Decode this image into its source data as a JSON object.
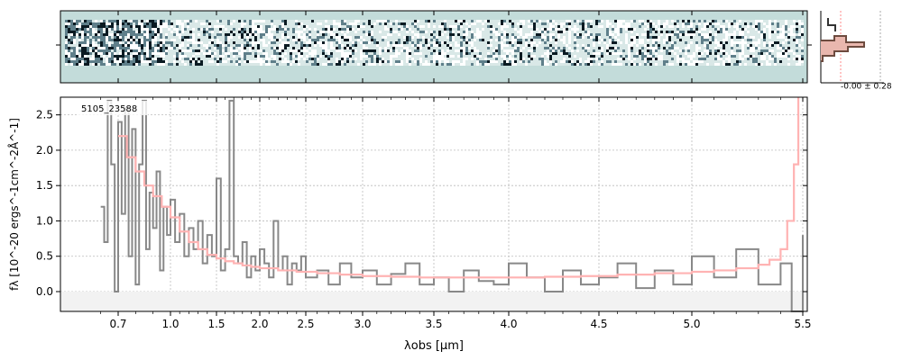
{
  "chart_data": {
    "type": "line",
    "title": "",
    "label": "5105_23588",
    "xlabel": "λobs [μm]",
    "ylabel": "fλ [10^-20 ergs^-1cm^-2Å^-1]",
    "x_ticks": [
      0.7,
      1.0,
      1.5,
      2.0,
      2.5,
      3.0,
      3.5,
      4.0,
      4.5,
      5.0,
      5.5
    ],
    "x_tick_labels": [
      "0.7",
      "1.0",
      "1.5",
      "2.0",
      "2.5",
      "3.0",
      "3.5",
      "4.0",
      "4.5",
      "5.0",
      "5.5"
    ],
    "y_ticks": [
      0.0,
      0.5,
      1.0,
      1.5,
      2.0,
      2.5
    ],
    "y_tick_labels": [
      "0.0",
      "0.5",
      "1.0",
      "1.5",
      "2.0",
      "2.5"
    ],
    "ylim": [
      -0.28,
      2.75
    ],
    "grid": true,
    "legend": "none",
    "inset_label": "-0.00 ± 0.28",
    "series": [
      {
        "color": "#888888",
        "x": [
          0.6,
          0.62,
          0.64,
          0.66,
          0.68,
          0.7,
          0.72,
          0.74,
          0.76,
          0.78,
          0.8,
          0.82,
          0.84,
          0.86,
          0.88,
          0.9,
          0.92,
          0.94,
          0.96,
          0.98,
          1.0,
          1.05,
          1.1,
          1.15,
          1.2,
          1.25,
          1.3,
          1.35,
          1.4,
          1.45,
          1.5,
          1.55,
          1.6,
          1.65,
          1.7,
          1.75,
          1.8,
          1.85,
          1.9,
          1.95,
          2.0,
          2.05,
          2.1,
          2.15,
          2.2,
          2.25,
          2.3,
          2.35,
          2.4,
          2.45,
          2.5,
          2.6,
          2.7,
          2.8,
          2.9,
          3.0,
          3.1,
          3.2,
          3.3,
          3.4,
          3.5,
          3.6,
          3.7,
          3.8,
          3.9,
          4.0,
          4.1,
          4.2,
          4.3,
          4.4,
          4.5,
          4.6,
          4.7,
          4.8,
          4.9,
          5.0,
          5.1,
          5.2,
          5.3,
          5.4,
          5.45,
          5.5
        ],
        "y": [
          1.2,
          0.7,
          2.7,
          1.8,
          0.0,
          2.4,
          1.1,
          2.6,
          0.5,
          2.3,
          0.1,
          1.8,
          2.7,
          0.6,
          1.4,
          0.9,
          1.7,
          0.3,
          1.2,
          0.8,
          1.3,
          0.7,
          1.1,
          0.5,
          0.9,
          0.6,
          1.0,
          0.4,
          0.8,
          0.5,
          1.6,
          0.3,
          0.6,
          2.7,
          0.5,
          0.4,
          0.7,
          0.2,
          0.5,
          0.3,
          0.6,
          0.4,
          0.2,
          1.0,
          0.3,
          0.5,
          0.1,
          0.4,
          0.3,
          0.5,
          0.2,
          0.3,
          0.1,
          0.4,
          0.2,
          0.3,
          0.1,
          0.25,
          0.4,
          0.1,
          0.2,
          0.0,
          0.3,
          0.15,
          0.1,
          0.4,
          0.2,
          0.0,
          0.3,
          0.1,
          0.2,
          0.4,
          0.05,
          0.3,
          0.1,
          0.5,
          0.2,
          0.6,
          0.1,
          0.4,
          -0.28,
          0.8
        ]
      },
      {
        "color": "#ffb3b3",
        "x": [
          0.7,
          0.75,
          0.8,
          0.85,
          0.9,
          0.95,
          1.0,
          1.1,
          1.2,
          1.3,
          1.4,
          1.5,
          1.6,
          1.7,
          1.8,
          1.9,
          2.0,
          2.2,
          2.4,
          2.6,
          2.8,
          3.0,
          3.2,
          3.4,
          3.6,
          3.8,
          4.0,
          4.2,
          4.4,
          4.6,
          4.8,
          5.0,
          5.1,
          5.2,
          5.3,
          5.35,
          5.4,
          5.43,
          5.46,
          5.48
        ],
        "y": [
          2.2,
          1.9,
          1.7,
          1.5,
          1.35,
          1.2,
          1.05,
          0.85,
          0.7,
          0.6,
          0.52,
          0.47,
          0.43,
          0.4,
          0.37,
          0.35,
          0.33,
          0.3,
          0.28,
          0.26,
          0.24,
          0.22,
          0.21,
          0.2,
          0.2,
          0.2,
          0.2,
          0.21,
          0.22,
          0.24,
          0.26,
          0.28,
          0.3,
          0.33,
          0.38,
          0.45,
          0.6,
          1.0,
          1.8,
          2.75
        ]
      }
    ]
  }
}
